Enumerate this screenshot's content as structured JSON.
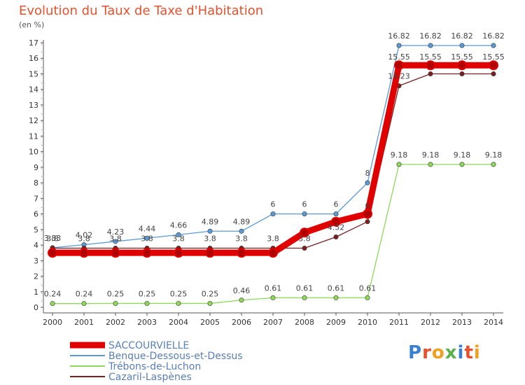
{
  "chart_data": {
    "type": "line",
    "title": "Evolution du Taux de Taxe d'Habitation",
    "ylabel": "(en %)",
    "x": [
      "2000",
      "2001",
      "2002",
      "2003",
      "2004",
      "2005",
      "2006",
      "2007",
      "2008",
      "2009",
      "2010",
      "2011",
      "2012",
      "2013",
      "2014"
    ],
    "ylim": [
      0,
      17
    ],
    "yticks": [
      0,
      1,
      2,
      3,
      4,
      5,
      6,
      7,
      8,
      9,
      10,
      11,
      12,
      13,
      14,
      15,
      16,
      17
    ],
    "grid": false,
    "legend_position": "bottom-left",
    "series": [
      {
        "name": "SACCOURVIELLE",
        "color": "#E00000",
        "values": [
          3.5,
          3.5,
          3.5,
          3.5,
          3.5,
          3.5,
          3.5,
          3.5,
          4.8,
          5.5,
          6,
          15.55,
          15.55,
          15.55,
          15.55
        ],
        "labels": [
          "",
          "",
          "",
          "",
          "",
          "",
          "",
          "",
          "",
          "",
          "6",
          "15.55",
          "15.55",
          "15.55",
          "15.55"
        ]
      },
      {
        "name": "Benque-Dessous-et-Dessus",
        "color": "#5A9BD5",
        "values": [
          3.83,
          4.02,
          4.23,
          4.44,
          4.66,
          4.89,
          4.89,
          6,
          6,
          6,
          8,
          16.82,
          16.82,
          16.82,
          16.82
        ],
        "labels": [
          "3.83",
          "4.02",
          "4.23",
          "4.44",
          "4.66",
          "4.89",
          "4.89",
          "6",
          "6",
          "6",
          "8",
          "16.82",
          "16.82",
          "16.82",
          "16.82"
        ]
      },
      {
        "name": "Trébons-de-Luchon",
        "color": "#8ED85A",
        "values": [
          0.24,
          0.24,
          0.25,
          0.25,
          0.25,
          0.25,
          0.46,
          0.61,
          0.61,
          0.61,
          0.61,
          9.18,
          9.18,
          9.18,
          9.18
        ],
        "labels": [
          "0.24",
          "0.24",
          "0.25",
          "0.25",
          "0.25",
          "0.25",
          "0.46",
          "0.61",
          "0.61",
          "0.61",
          "0.61",
          "9.18",
          "9.18",
          "9.18",
          "9.18"
        ]
      },
      {
        "name": "Cazaril-Laspènes",
        "color": "#7A2020",
        "values": [
          3.8,
          3.8,
          3.8,
          3.8,
          3.8,
          3.8,
          3.8,
          3.8,
          3.8,
          4.52,
          5.5,
          14.23,
          15,
          15,
          15
        ],
        "labels": [
          "3.8",
          "3.8",
          "3.8",
          "3.8",
          "3.8",
          "3.8",
          "3.8",
          "3.8",
          "3.8",
          "4.52",
          "",
          "14.23",
          "",
          "",
          ""
        ]
      }
    ]
  },
  "logo": {
    "text": "Proxiti"
  }
}
